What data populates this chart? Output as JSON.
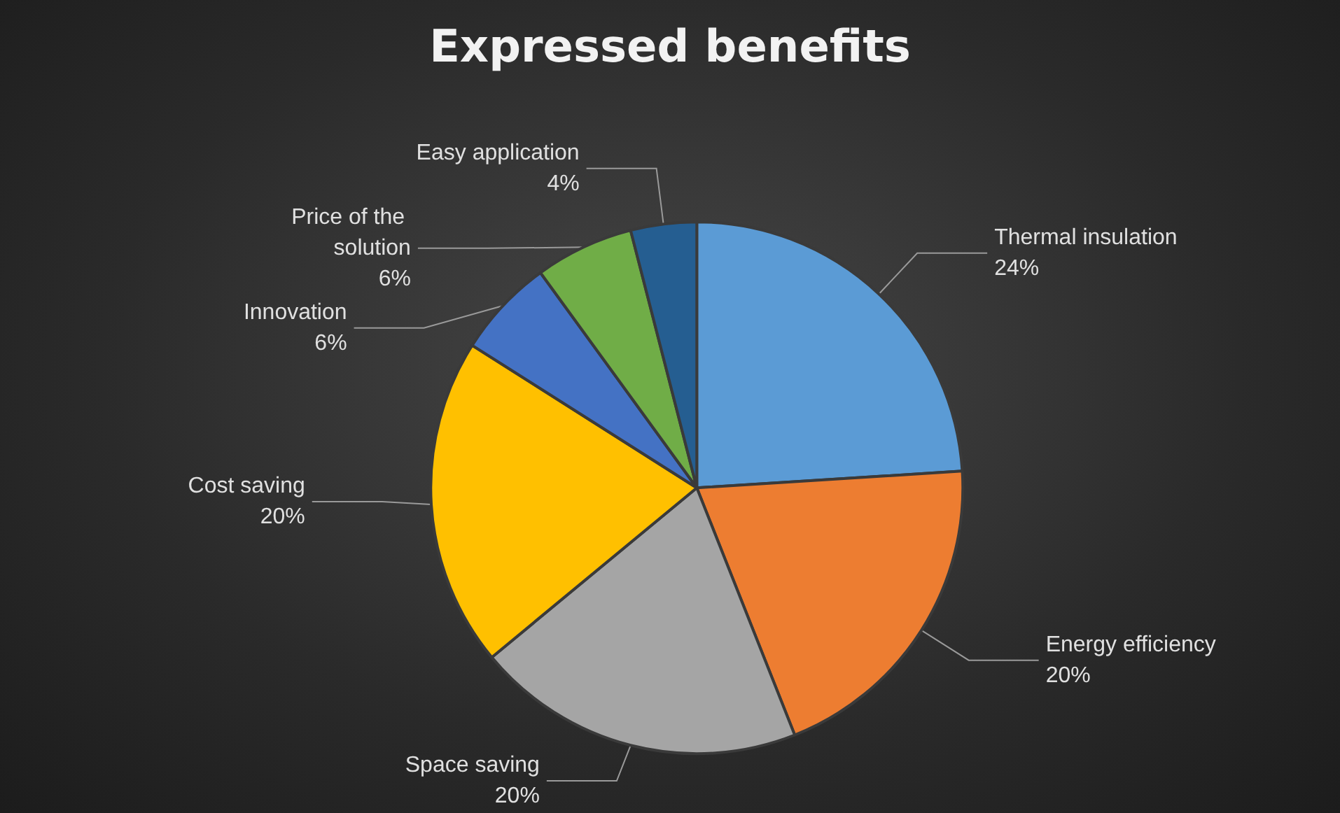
{
  "chart_data": {
    "type": "pie",
    "title": "Expressed benefits",
    "categories": [
      "Thermal insulation",
      "Energy efficiency",
      "Space saving",
      "Cost saving",
      "Innovation",
      "Price of the solution",
      "Easy application"
    ],
    "values": [
      24,
      20,
      20,
      20,
      6,
      6,
      4
    ],
    "colors": [
      "#5b9bd5",
      "#ed7d31",
      "#a5a5a5",
      "#ffc000",
      "#4472c4",
      "#70ad47",
      "#255e91"
    ],
    "value_labels": [
      "24%",
      "20%",
      "20%",
      "20%",
      "6%",
      "6%",
      "4%"
    ],
    "legend": false
  }
}
